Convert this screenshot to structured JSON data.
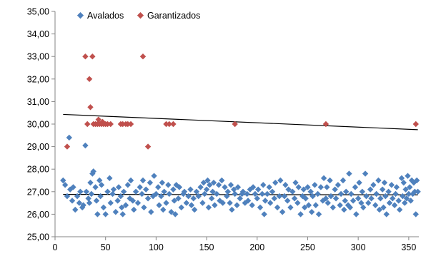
{
  "chart_data": {
    "type": "scatter",
    "title": "",
    "xlabel": "",
    "ylabel": "",
    "xlim": [
      0,
      360
    ],
    "ylim": [
      25,
      35
    ],
    "x_ticks": [
      "0",
      "50",
      "100",
      "150",
      "200",
      "250",
      "300",
      "350"
    ],
    "y_ticks": [
      "25,00",
      "26,00",
      "27,00",
      "28,00",
      "29,00",
      "30,00",
      "31,00",
      "32,00",
      "33,00",
      "34,00",
      "35,00"
    ],
    "grid": false,
    "legend_position": "top-left",
    "legend": [
      "Avalados",
      "Garantizados"
    ],
    "series": [
      {
        "name": "Avalados",
        "color": "#4f81bd",
        "marker": "diamond",
        "points": [
          [
            8,
            27.5
          ],
          [
            10,
            27.3
          ],
          [
            12,
            26.8
          ],
          [
            14,
            29.4
          ],
          [
            15,
            27.1
          ],
          [
            17,
            26.6
          ],
          [
            18,
            27.2
          ],
          [
            20,
            26.2
          ],
          [
            22,
            26.8
          ],
          [
            24,
            26.5
          ],
          [
            25,
            27.0
          ],
          [
            27,
            26.3
          ],
          [
            28,
            26.4
          ],
          [
            30,
            29.05
          ],
          [
            31,
            27.0
          ],
          [
            33,
            26.7
          ],
          [
            34,
            26.5
          ],
          [
            35,
            27.4
          ],
          [
            36,
            26.9
          ],
          [
            37,
            27.8
          ],
          [
            38,
            27.9
          ],
          [
            40,
            27.2
          ],
          [
            41,
            26.6
          ],
          [
            42,
            26.0
          ],
          [
            44,
            27.5
          ],
          [
            45,
            26.8
          ],
          [
            46,
            27.3
          ],
          [
            48,
            26.3
          ],
          [
            50,
            26.0
          ],
          [
            52,
            27.0
          ],
          [
            54,
            27.6
          ],
          [
            55,
            26.5
          ],
          [
            57,
            26.9
          ],
          [
            58,
            27.1
          ],
          [
            60,
            26.1
          ],
          [
            62,
            26.6
          ],
          [
            63,
            27.2
          ],
          [
            65,
            26.8
          ],
          [
            66,
            26.3
          ],
          [
            67,
            26.0
          ],
          [
            68,
            27.0
          ],
          [
            70,
            26.4
          ],
          [
            72,
            27.3
          ],
          [
            74,
            26.7
          ],
          [
            75,
            27.5
          ],
          [
            77,
            26.6
          ],
          [
            78,
            26.2
          ],
          [
            80,
            27.0
          ],
          [
            82,
            26.5
          ],
          [
            84,
            27.2
          ],
          [
            86,
            26.9
          ],
          [
            87,
            27.5
          ],
          [
            88,
            26.3
          ],
          [
            90,
            27.1
          ],
          [
            92,
            26.7
          ],
          [
            94,
            27.4
          ],
          [
            95,
            26.1
          ],
          [
            97,
            26.8
          ],
          [
            98,
            27.7
          ],
          [
            100,
            26.9
          ],
          [
            102,
            27.2
          ],
          [
            103,
            26.4
          ],
          [
            105,
            26.8
          ],
          [
            106,
            27.4
          ],
          [
            107,
            26.2
          ],
          [
            108,
            27.0
          ],
          [
            110,
            26.5
          ],
          [
            112,
            27.3
          ],
          [
            113,
            26.9
          ],
          [
            115,
            26.1
          ],
          [
            117,
            27.1
          ],
          [
            118,
            26.6
          ],
          [
            119,
            26.0
          ],
          [
            120,
            27.3
          ],
          [
            122,
            26.7
          ],
          [
            123,
            27.2
          ],
          [
            125,
            26.3
          ],
          [
            127,
            26.9
          ],
          [
            128,
            27.0
          ],
          [
            130,
            26.5
          ],
          [
            132,
            26.8
          ],
          [
            134,
            27.1
          ],
          [
            135,
            26.4
          ],
          [
            137,
            26.7
          ],
          [
            138,
            26.2
          ],
          [
            140,
            27.0
          ],
          [
            142,
            26.8
          ],
          [
            144,
            27.2
          ],
          [
            146,
            26.5
          ],
          [
            147,
            27.4
          ],
          [
            148,
            26.9
          ],
          [
            150,
            27.1
          ],
          [
            151,
            27.5
          ],
          [
            152,
            26.3
          ],
          [
            153,
            27.3
          ],
          [
            155,
            26.7
          ],
          [
            156,
            27.0
          ],
          [
            157,
            27.4
          ],
          [
            158,
            26.4
          ],
          [
            160,
            26.9
          ],
          [
            162,
            27.3
          ],
          [
            163,
            26.6
          ],
          [
            165,
            27.5
          ],
          [
            166,
            26.5
          ],
          [
            168,
            27.2
          ],
          [
            170,
            26.8
          ],
          [
            171,
            27.0
          ],
          [
            173,
            26.5
          ],
          [
            174,
            27.3
          ],
          [
            175,
            26.2
          ],
          [
            177,
            27.1
          ],
          [
            178,
            26.9
          ],
          [
            180,
            26.4
          ],
          [
            181,
            27.2
          ],
          [
            183,
            26.7
          ],
          [
            185,
            26.9
          ],
          [
            186,
            27.0
          ],
          [
            188,
            26.5
          ],
          [
            190,
            26.9
          ],
          [
            191,
            26.6
          ],
          [
            193,
            27.1
          ],
          [
            195,
            26.4
          ],
          [
            196,
            27.2
          ],
          [
            198,
            26.9
          ],
          [
            200,
            26.7
          ],
          [
            201,
            27.1
          ],
          [
            203,
            26.3
          ],
          [
            205,
            26.9
          ],
          [
            206,
            27.3
          ],
          [
            207,
            26.0
          ],
          [
            208,
            26.6
          ],
          [
            210,
            26.9
          ],
          [
            212,
            27.2
          ],
          [
            213,
            26.5
          ],
          [
            215,
            27.0
          ],
          [
            217,
            26.7
          ],
          [
            218,
            27.4
          ],
          [
            220,
            26.3
          ],
          [
            222,
            26.8
          ],
          [
            223,
            27.5
          ],
          [
            225,
            26.1
          ],
          [
            227,
            26.8
          ],
          [
            228,
            27.3
          ],
          [
            230,
            26.6
          ],
          [
            231,
            27.1
          ],
          [
            233,
            26.3
          ],
          [
            235,
            27.0
          ],
          [
            237,
            26.7
          ],
          [
            238,
            27.4
          ],
          [
            240,
            26.5
          ],
          [
            241,
            27.2
          ],
          [
            243,
            26.0
          ],
          [
            245,
            26.8
          ],
          [
            246,
            27.1
          ],
          [
            247,
            26.3
          ],
          [
            248,
            26.7
          ],
          [
            250,
            27.2
          ],
          [
            251,
            26.4
          ],
          [
            253,
            27.0
          ],
          [
            254,
            26.1
          ],
          [
            255,
            26.8
          ],
          [
            257,
            27.3
          ],
          [
            258,
            26.4
          ],
          [
            260,
            26.9
          ],
          [
            261,
            26.0
          ],
          [
            263,
            27.2
          ],
          [
            265,
            26.6
          ],
          [
            266,
            27.6
          ],
          [
            268,
            26.7
          ],
          [
            269,
            27.2
          ],
          [
            270,
            26.5
          ],
          [
            272,
            27.5
          ],
          [
            273,
            26.8
          ],
          [
            275,
            26.3
          ],
          [
            277,
            27.1
          ],
          [
            278,
            26.7
          ],
          [
            280,
            27.3
          ],
          [
            282,
            26.4
          ],
          [
            283,
            26.9
          ],
          [
            285,
            27.5
          ],
          [
            286,
            26.2
          ],
          [
            287,
            26.6
          ],
          [
            288,
            27.0
          ],
          [
            290,
            26.4
          ],
          [
            291,
            27.8
          ],
          [
            292,
            26.3
          ],
          [
            293,
            26.9
          ],
          [
            295,
            26.6
          ],
          [
            297,
            27.2
          ],
          [
            298,
            26.0
          ],
          [
            300,
            26.7
          ],
          [
            301,
            27.4
          ],
          [
            303,
            26.5
          ],
          [
            304,
            27.0
          ],
          [
            305,
            26.3
          ],
          [
            307,
            27.8
          ],
          [
            308,
            26.8
          ],
          [
            310,
            26.5
          ],
          [
            312,
            27.1
          ],
          [
            313,
            26.7
          ],
          [
            315,
            27.3
          ],
          [
            317,
            26.4
          ],
          [
            318,
            26.9
          ],
          [
            320,
            27.5
          ],
          [
            321,
            26.2
          ],
          [
            322,
            26.7
          ],
          [
            324,
            27.1
          ],
          [
            325,
            26.3
          ],
          [
            326,
            27.4
          ],
          [
            327,
            26.8
          ],
          [
            328,
            26.0
          ],
          [
            330,
            27.0
          ],
          [
            331,
            26.5
          ],
          [
            333,
            27.3
          ],
          [
            334,
            26.7
          ],
          [
            336,
            26.4
          ],
          [
            337,
            26.9
          ],
          [
            338,
            27.2
          ],
          [
            340,
            26.6
          ],
          [
            341,
            26.2
          ],
          [
            343,
            27.6
          ],
          [
            344,
            26.8
          ],
          [
            345,
            27.4
          ],
          [
            346,
            26.5
          ],
          [
            347,
            27.1
          ],
          [
            348,
            26.7
          ],
          [
            349,
            27.7
          ],
          [
            350,
            26.9
          ],
          [
            351,
            27.2
          ],
          [
            352,
            26.6
          ],
          [
            353,
            27.5
          ],
          [
            354,
            26.9
          ],
          [
            355,
            27.4
          ],
          [
            356,
            27.0
          ],
          [
            357,
            26.0
          ],
          [
            358,
            27.5
          ],
          [
            359,
            27.0
          ]
        ]
      },
      {
        "name": "Garantizados",
        "color": "#c0504d",
        "marker": "diamond",
        "points": [
          [
            12,
            29.0
          ],
          [
            30,
            33.0
          ],
          [
            32,
            30.0
          ],
          [
            34,
            32.0
          ],
          [
            35,
            30.75
          ],
          [
            37,
            33.0
          ],
          [
            38,
            30.0
          ],
          [
            40,
            30.0
          ],
          [
            42,
            30.0
          ],
          [
            43,
            30.2
          ],
          [
            44,
            30.0
          ],
          [
            46,
            30.0
          ],
          [
            47,
            30.1
          ],
          [
            48,
            30.0
          ],
          [
            50,
            30.0
          ],
          [
            52,
            30.0
          ],
          [
            55,
            30.0
          ],
          [
            65,
            30.0
          ],
          [
            67,
            30.0
          ],
          [
            70,
            30.0
          ],
          [
            72,
            30.0
          ],
          [
            75,
            30.0
          ],
          [
            87,
            33.0
          ],
          [
            92,
            29.0
          ],
          [
            110,
            30.0
          ],
          [
            113,
            30.0
          ],
          [
            117,
            30.0
          ],
          [
            178,
            30.0
          ],
          [
            268,
            30.0
          ],
          [
            357,
            30.0
          ]
        ]
      }
    ],
    "trendlines": [
      {
        "series": "Avalados",
        "x": [
          8,
          359
        ],
        "y": [
          26.88,
          26.86
        ],
        "color": "#000000"
      },
      {
        "series": "Garantizados",
        "x": [
          8,
          359
        ],
        "y": [
          30.43,
          29.75
        ],
        "color": "#000000"
      }
    ]
  }
}
